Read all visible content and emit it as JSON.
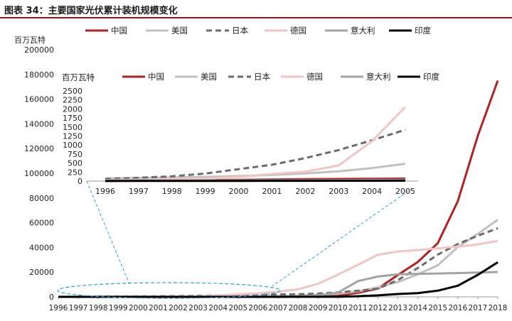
{
  "figure_title": "图表 34：主要国家光伏累计装机规模变化",
  "chart_data": [
    {
      "type": "line",
      "ylabel": "百万瓦特",
      "ylim": [
        0,
        200000
      ],
      "yticks": [
        0,
        20000,
        40000,
        60000,
        80000,
        100000,
        120000,
        140000,
        160000,
        180000,
        200000
      ],
      "x": [
        "1996",
        "1997",
        "1998",
        "1999",
        "2000",
        "2001",
        "2002",
        "2003",
        "2004",
        "2005",
        "2006",
        "2007",
        "2008",
        "2009",
        "2010",
        "2011",
        "2012",
        "2013",
        "2014",
        "2015",
        "2016",
        "2017",
        "2018"
      ],
      "legend_position": "top",
      "series": [
        {
          "name": "中国",
          "color": "#b22222",
          "dash": "solid",
          "values": [
            10,
            15,
            20,
            25,
            35,
            45,
            55,
            60,
            65,
            70,
            80,
            100,
            140,
            300,
            800,
            3300,
            6700,
            17700,
            28200,
            43500,
            77400,
            130300,
            175000
          ]
        },
        {
          "name": "美国",
          "color": "#c0c0c0",
          "dash": "solid",
          "values": [
            75,
            88,
            100,
            117,
            140,
            170,
            210,
            270,
            360,
            480,
            620,
            830,
            1170,
            1640,
            2530,
            4430,
            7700,
            12000,
            18300,
            25600,
            40300,
            51000,
            62400
          ]
        },
        {
          "name": "日本",
          "color": "#6b6b6b",
          "dash": "dash",
          "values": [
            60,
            90,
            133,
            209,
            330,
            453,
            637,
            860,
            1132,
            1422,
            1708,
            1919,
            2144,
            2627,
            3618,
            4914,
            6632,
            13643,
            23339,
            34150,
            42750,
            49500,
            55500
          ]
        },
        {
          "name": "德国",
          "color": "#f2c4c4",
          "dash": "solid",
          "values": [
            28,
            42,
            54,
            70,
            114,
            195,
            260,
            435,
            1105,
            2056,
            2899,
            4170,
            6120,
            10566,
            18006,
            25916,
            34077,
            36710,
            37900,
            39224,
            40679,
            42394,
            45277
          ]
        },
        {
          "name": "意大利",
          "color": "#a3a3a3",
          "dash": "solid",
          "values": [
            16,
            17,
            18,
            18,
            19,
            20,
            22,
            26,
            31,
            37,
            50,
            120,
            458,
            1181,
            3470,
            12780,
            16450,
            18190,
            18600,
            18900,
            19280,
            19680,
            20120
          ]
        },
        {
          "name": "印度",
          "color": "#000000",
          "dash": "solid",
          "values": [
            2,
            3,
            4,
            5,
            6,
            7,
            8,
            9,
            10,
            12,
            15,
            20,
            30,
            40,
            65,
            500,
            1200,
            2300,
            3000,
            5000,
            9000,
            17800,
            28000
          ]
        }
      ]
    },
    {
      "type": "line",
      "ylabel": "百万瓦特",
      "ylim": [
        0,
        2500
      ],
      "yticks": [
        0,
        250,
        500,
        750,
        1000,
        1250,
        1500,
        1750,
        2000,
        2250,
        2500
      ],
      "x": [
        "1996",
        "1997",
        "1998",
        "1999",
        "2000",
        "2001",
        "2002",
        "2003",
        "2004",
        "2005"
      ],
      "legend_position": "top",
      "series": [
        {
          "name": "中国",
          "values": [
            10,
            15,
            20,
            25,
            35,
            45,
            55,
            60,
            65,
            70
          ]
        },
        {
          "name": "美国",
          "values": [
            75,
            88,
            100,
            117,
            140,
            170,
            210,
            270,
            360,
            480
          ]
        },
        {
          "name": "日本",
          "values": [
            60,
            90,
            133,
            209,
            330,
            453,
            637,
            860,
            1132,
            1422
          ]
        },
        {
          "name": "德国",
          "values": [
            28,
            42,
            54,
            70,
            114,
            195,
            260,
            435,
            1105,
            2056
          ]
        },
        {
          "name": "意大利",
          "values": [
            16,
            17,
            18,
            18,
            19,
            20,
            22,
            26,
            31,
            37
          ]
        },
        {
          "name": "印度",
          "values": [
            2,
            3,
            4,
            5,
            6,
            7,
            8,
            9,
            10,
            12
          ]
        }
      ]
    }
  ]
}
